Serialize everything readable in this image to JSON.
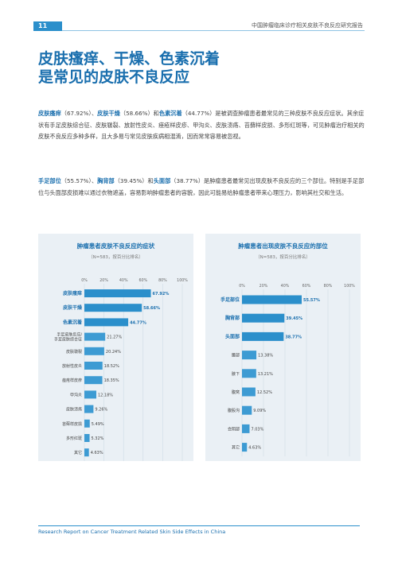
{
  "header": {
    "page_number": "11",
    "report_title": "中国肿瘤临床诊疗相关皮肤不良反应研究报告"
  },
  "headline": {
    "line1": "皮肤瘙痒、干燥、色素沉着",
    "line2": "是常见的皮肤不良反应"
  },
  "paragraph1": {
    "hl1": "皮肤瘙痒",
    "t1": "（67.92%）、",
    "hl2": "皮肤干燥",
    "t2": "（58.66%）和",
    "hl3": "色素沉着",
    "t3": "（44.77%）是被调查肿瘤患者最常见的三种皮肤不良反应症状。其余症状有手足皮肤综合征、皮肤皲裂、放射性皮炎、痤疮样皮疹、甲沟炎、皮肤溃疡、苔藓样皮损、多形红斑等，可见肿瘤治疗相关的皮肤不良反应多种多样，且大多易与常见皮肤疾病相混淆，因而常常容易被忽视。"
  },
  "paragraph2": {
    "hl1": "手足部位",
    "t1": "（55.57%）、",
    "hl2": "胸背部",
    "t2": "（39.45%）和",
    "hl3": "头面部",
    "t3": "（38.77%）是肿瘤患者最常见出现皮肤不良反应的三个部位。特别是手足部位与头面部皮损难以通过衣物遮盖，容易影响肿瘤患者的容貌，因此可能易给肿瘤患者带来心理压力，影响其社交和生活。"
  },
  "chart_data": [
    {
      "type": "bar",
      "orientation": "horizontal",
      "title": "肿瘤患者皮肤不良反应的症状",
      "subtitle": "（N=583，按百分比排名）",
      "x_ticks": [
        "0%",
        "20%",
        "40%",
        "60%",
        "80%",
        "100%"
      ],
      "xlim": [
        0,
        100
      ],
      "grid": true,
      "colors": {
        "highlight": "#2b8fcb",
        "normal": "#3d9bd3",
        "highlight_label": "#1a6fae"
      },
      "categories": [
        "皮肤瘙痒",
        "皮肤干燥",
        "色素沉着",
        "手足皮肤反应/手足皮肤综合征",
        "皮肤皲裂",
        "放射性皮炎",
        "痤疮样皮疹",
        "甲沟炎",
        "皮肤溃疡",
        "苔藓样皮损",
        "多形红斑",
        "其它"
      ],
      "category_lines": [
        [
          "皮肤瘙痒"
        ],
        [
          "皮肤干燥"
        ],
        [
          "色素沉着"
        ],
        [
          "手足皮肤反应/",
          "手足皮肤综合征"
        ],
        [
          "皮肤皲裂"
        ],
        [
          "放射性皮炎"
        ],
        [
          "痤疮样皮疹"
        ],
        [
          "甲沟炎"
        ],
        [
          "皮肤溃疡"
        ],
        [
          "苔藓样皮损"
        ],
        [
          "多形红斑"
        ],
        [
          "其它"
        ]
      ],
      "values": [
        67.92,
        58.66,
        44.77,
        21.27,
        20.24,
        18.52,
        18.35,
        12.18,
        9.26,
        5.49,
        5.32,
        4.63
      ],
      "value_labels": [
        "67.92%",
        "58.66%",
        "44.77%",
        "21.27%",
        "20.24%",
        "18.52%",
        "18.35%",
        "12.18%",
        "9.26%",
        "5.49%",
        "5.32%",
        "4.63%"
      ],
      "highlight_count": 3
    },
    {
      "type": "bar",
      "orientation": "horizontal",
      "title": "肿瘤患者出现皮肤不良反应的部位",
      "subtitle": "（N=583，按百分比排名）",
      "x_ticks": [
        "0%",
        "20%",
        "40%",
        "60%",
        "80%",
        "100%"
      ],
      "xlim": [
        0,
        100
      ],
      "grid": true,
      "colors": {
        "highlight": "#2b8fcb",
        "normal": "#3d9bd3",
        "highlight_label": "#1a6fae"
      },
      "categories": [
        "手足部位",
        "胸背部",
        "头面部",
        "腰部",
        "腋下",
        "腹窝",
        "腹股沟",
        "会阴部",
        "其它"
      ],
      "category_lines": [
        [
          "手足部位"
        ],
        [
          "胸背部"
        ],
        [
          "头面部"
        ],
        [
          "腰部"
        ],
        [
          "腋下"
        ],
        [
          "腹窝"
        ],
        [
          "腹股沟"
        ],
        [
          "会阴部"
        ],
        [
          "其它"
        ]
      ],
      "values": [
        55.57,
        39.45,
        38.77,
        13.38,
        13.21,
        12.52,
        9.09,
        7.03,
        4.63
      ],
      "value_labels": [
        "55.57%",
        "39.45%",
        "38.77%",
        "13.38%",
        "13.21%",
        "12.52%",
        "9.09%",
        "7.03%",
        "4.63%"
      ],
      "highlight_count": 3
    }
  ],
  "footer": {
    "text": "Research Report on Cancer Treatment Related Skin Side Effects in China"
  }
}
